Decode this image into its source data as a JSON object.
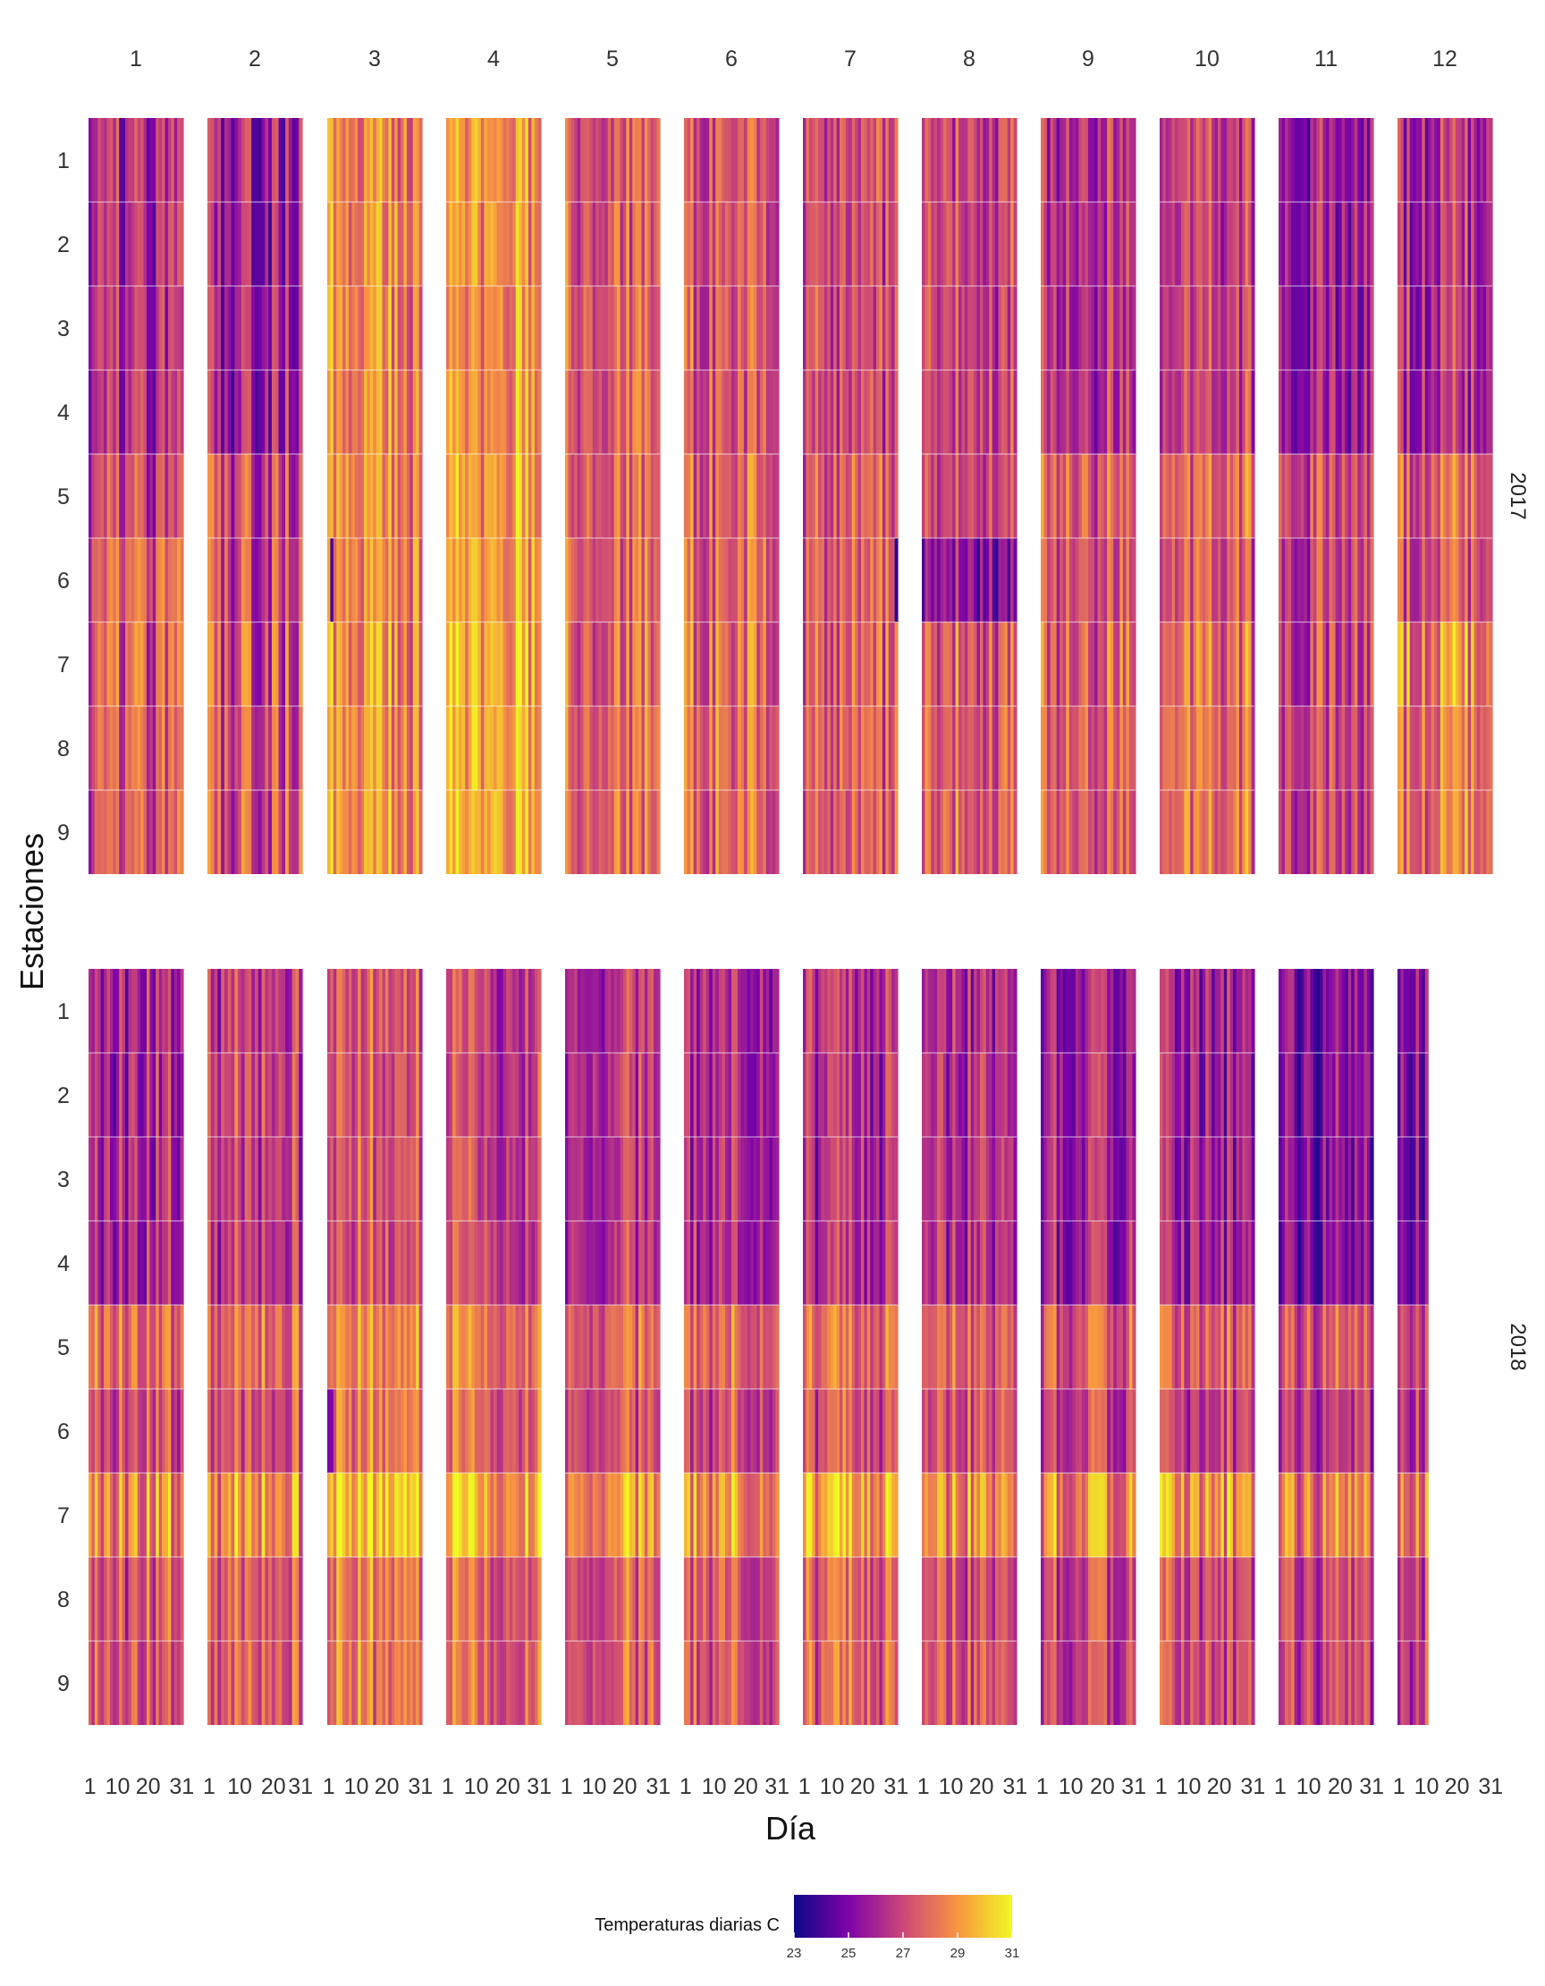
{
  "chart_data": {
    "type": "heatmap",
    "title": "",
    "xlabel": "Día",
    "ylabel": "Estaciones",
    "facet_columns": [
      "1",
      "2",
      "3",
      "4",
      "5",
      "6",
      "7",
      "8",
      "9",
      "10",
      "11",
      "12"
    ],
    "facet_rows": [
      "2017",
      "2018"
    ],
    "stations": [
      "1",
      "2",
      "3",
      "4",
      "5",
      "6",
      "7",
      "8",
      "9"
    ],
    "day_ticks": [
      "1",
      "10",
      "20",
      "31"
    ],
    "days_in_month": [
      31,
      28,
      31,
      30,
      31,
      30,
      31,
      31,
      30,
      31,
      30,
      31
    ],
    "observed_days": {
      "2017": [
        31,
        28,
        31,
        30,
        31,
        30,
        31,
        31,
        30,
        31,
        30,
        31
      ],
      "2018": [
        31,
        28,
        31,
        30,
        31,
        30,
        31,
        31,
        30,
        31,
        30,
        10
      ]
    },
    "value_range": [
      23,
      31
    ],
    "legend": {
      "title": "Temperaturas diarias C",
      "ticks": [
        23,
        25,
        27,
        29,
        31
      ],
      "colors": [
        "#0d0887",
        "#7e03a8",
        "#cc4778",
        "#f89540",
        "#f0f921"
      ],
      "position": "bottom"
    },
    "grid": true,
    "estimated_station_month_means": {
      "2017": [
        [
          26.0,
          25.8,
          28.6,
          28.8,
          27.9,
          27.4,
          27.3,
          27.1,
          26.4,
          26.8,
          25.8,
          26.4
        ],
        [
          26.0,
          25.8,
          28.6,
          28.8,
          27.9,
          27.4,
          27.3,
          27.1,
          26.4,
          26.8,
          25.8,
          26.4
        ],
        [
          26.0,
          25.8,
          28.6,
          28.8,
          27.9,
          27.4,
          27.3,
          27.1,
          26.4,
          26.8,
          25.8,
          26.4
        ],
        [
          26.0,
          25.8,
          28.6,
          28.8,
          27.9,
          27.4,
          27.3,
          27.1,
          26.4,
          26.8,
          25.8,
          26.4
        ],
        [
          26.8,
          26.9,
          28.7,
          29.0,
          28.0,
          27.7,
          27.6,
          27.3,
          27.7,
          27.9,
          27.3,
          27.8
        ],
        [
          27.5,
          27.0,
          28.7,
          29.1,
          28.1,
          27.8,
          27.7,
          25.6,
          27.3,
          27.6,
          26.9,
          27.6
        ],
        [
          27.3,
          27.2,
          28.8,
          29.4,
          28.2,
          27.9,
          27.8,
          27.8,
          27.6,
          28.1,
          27.0,
          28.7
        ],
        [
          27.3,
          27.2,
          28.8,
          29.4,
          28.2,
          27.9,
          27.8,
          27.8,
          27.6,
          28.1,
          27.0,
          28.3
        ],
        [
          27.3,
          27.2,
          28.8,
          29.4,
          28.2,
          27.9,
          27.8,
          27.8,
          27.6,
          28.1,
          27.0,
          28.3
        ]
      ],
      "2018": [
        [
          26.1,
          26.8,
          27.4,
          27.1,
          26.6,
          26.3,
          26.4,
          26.4,
          25.9,
          25.8,
          25.2,
          25.6
        ],
        [
          26.1,
          26.8,
          27.4,
          27.1,
          26.6,
          26.3,
          26.4,
          26.4,
          25.9,
          25.8,
          25.2,
          25.6
        ],
        [
          26.1,
          26.8,
          27.4,
          27.1,
          26.6,
          26.3,
          26.4,
          26.4,
          25.9,
          25.8,
          25.2,
          25.6
        ],
        [
          26.1,
          26.8,
          27.4,
          27.1,
          26.6,
          26.3,
          26.4,
          26.4,
          25.9,
          25.8,
          25.2,
          25.6
        ],
        [
          28.0,
          28.0,
          28.6,
          28.5,
          27.9,
          27.9,
          28.0,
          27.8,
          27.7,
          27.5,
          27.3,
          27.6
        ],
        [
          27.2,
          27.4,
          28.4,
          28.0,
          27.4,
          27.3,
          27.5,
          27.3,
          27.0,
          26.8,
          26.6,
          27.0
        ],
        [
          28.6,
          28.8,
          30.2,
          29.6,
          29.1,
          29.0,
          29.4,
          28.9,
          28.7,
          28.9,
          28.4,
          28.9
        ],
        [
          27.4,
          27.6,
          28.4,
          28.0,
          27.6,
          27.6,
          27.8,
          27.5,
          27.0,
          27.1,
          27.0,
          27.3
        ],
        [
          27.4,
          27.6,
          28.4,
          28.0,
          27.6,
          27.6,
          27.8,
          27.5,
          27.0,
          27.1,
          27.0,
          27.3
        ]
      ]
    },
    "notable_cells": [
      {
        "year": "2017",
        "month": "3",
        "station": "6",
        "days": "2",
        "value": 24.0
      },
      {
        "year": "2017",
        "month": "7",
        "station": "6",
        "days": "31",
        "value": 23.5
      },
      {
        "year": "2017",
        "month": "8",
        "station": "6",
        "days": "1",
        "value": 24.0
      },
      {
        "year": "2018",
        "month": "3",
        "station": "6",
        "days": "1-2",
        "value": 25.0
      }
    ]
  }
}
